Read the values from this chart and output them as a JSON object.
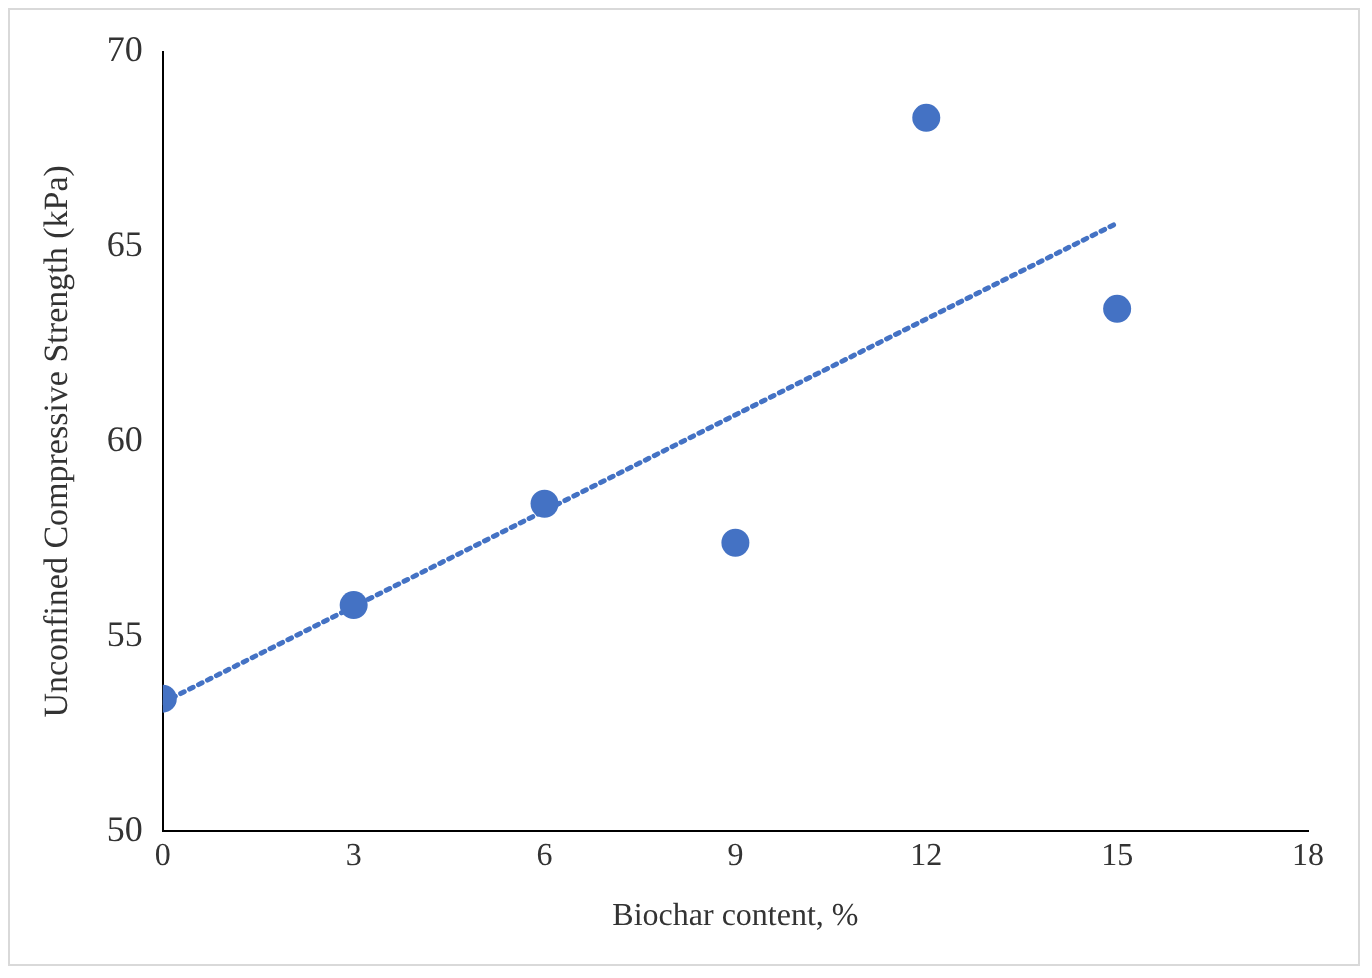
{
  "chart_data": {
    "type": "scatter",
    "xlabel": "Biochar content, %",
    "ylabel": "Unconfined Compressive Strength (kPa)",
    "x": [
      0,
      3,
      6,
      9,
      12,
      15
    ],
    "series": [
      {
        "type": "scatter",
        "color": "#4472c4",
        "marker": "circle",
        "values": [
          53.4,
          55.8,
          58.4,
          57.4,
          68.3,
          63.4
        ]
      },
      {
        "type": "line",
        "color": "#4472c4",
        "line_style": "dotted",
        "marker": "none",
        "x": [
          0,
          15
        ],
        "values": [
          53.3,
          65.6
        ]
      }
    ],
    "xlim": [
      0,
      18
    ],
    "xticks": [
      0,
      3,
      6,
      9,
      12,
      15,
      18
    ],
    "ylim": [
      50,
      70
    ],
    "yticks": [
      50,
      55,
      60,
      65,
      70
    ]
  }
}
